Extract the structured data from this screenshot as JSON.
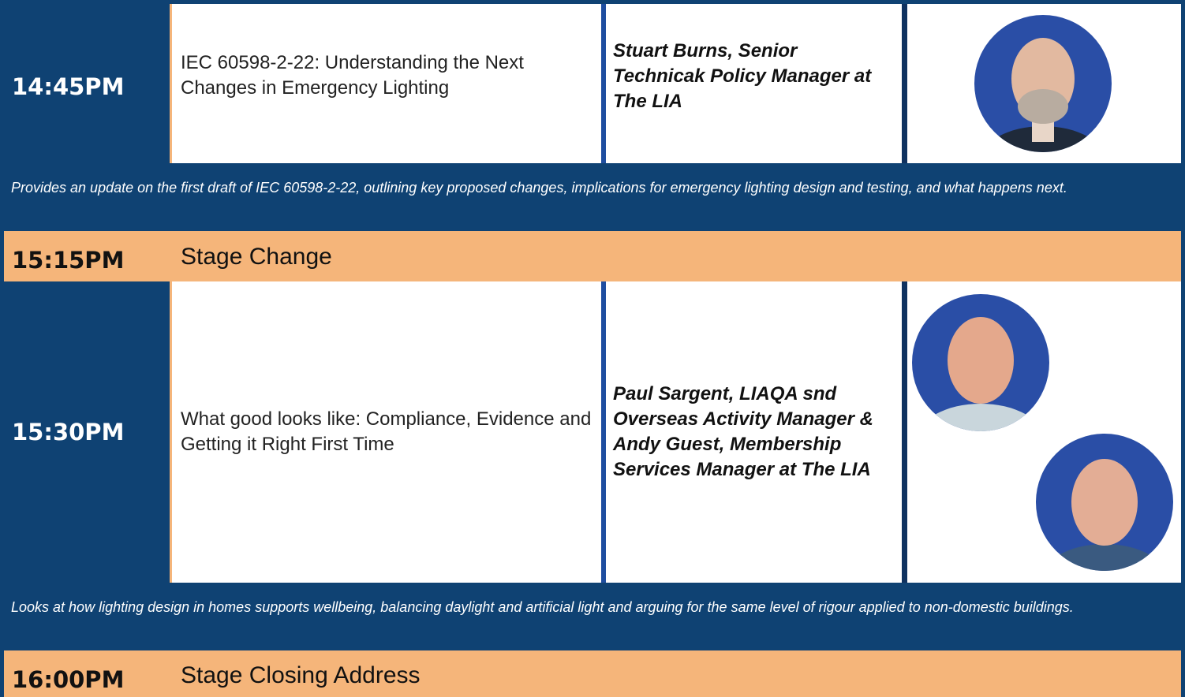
{
  "rows": [
    {
      "time": "14:45PM",
      "title": "IEC 60598-2-22: Understanding the Next Changes in Emergency Lighting",
      "speakers": "Stuart Burns, Senior Technicak Policy Manager at The LIA",
      "description": "Provides an update on the first draft of IEC 60598-2-22, outlining key proposed changes, implications for emergency lighting design and testing, and what happens next."
    },
    {
      "time": "15:15PM",
      "title": "Stage Change"
    },
    {
      "time": "15:30PM",
      "title": "What good looks like: Compliance, Evidence and Getting it Right First Time",
      "speakers": "Paul Sargent, LIAQA snd Overseas Activity Manager & Andy Guest, Membership Services Manager at The LIA",
      "description": "Looks at how lighting design in homes supports wellbeing, balancing daylight and artificial light and arguing for the same level of rigour applied to non-domestic buildings."
    },
    {
      "time": "16:00PM",
      "title": "Stage Closing Address"
    }
  ]
}
